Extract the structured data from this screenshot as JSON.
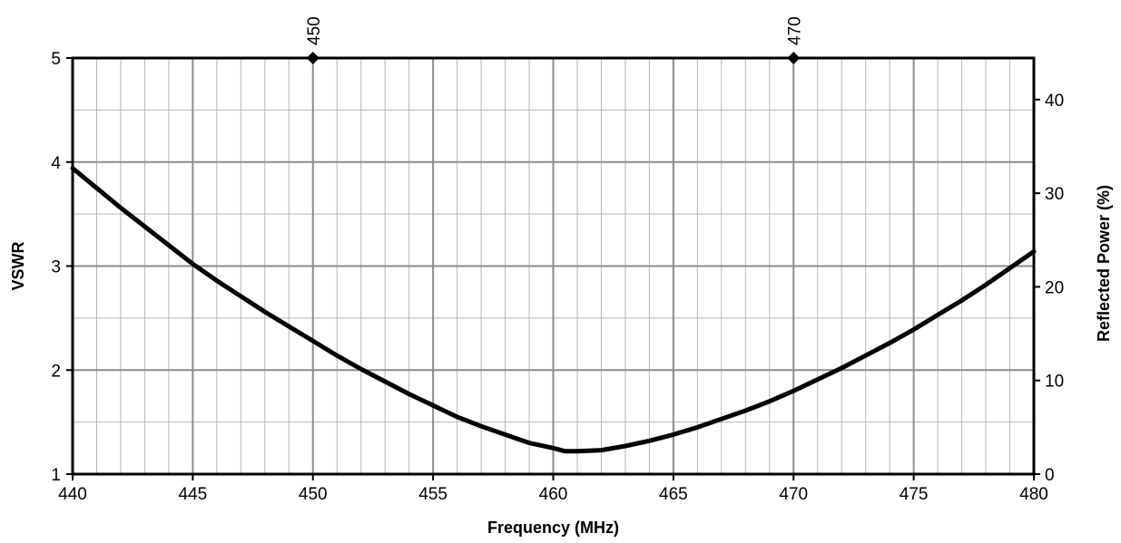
{
  "chart_data": {
    "type": "line",
    "xlabel": "Frequency (MHz)",
    "ylabel": "VSWR",
    "y2label": "Reflected Power (%)",
    "xlim": [
      440,
      480
    ],
    "ylim": [
      1,
      5
    ],
    "y2lim": [
      0,
      44.44
    ],
    "x_ticks": [
      "440",
      "445",
      "450",
      "455",
      "460",
      "465",
      "470",
      "475",
      "480"
    ],
    "y_ticks": [
      "1",
      "2",
      "3",
      "4",
      "5"
    ],
    "y2_ticks": [
      "0",
      "10",
      "20",
      "30",
      "40"
    ],
    "top_markers": [
      {
        "label": "450",
        "x": 450
      },
      {
        "label": "470",
        "x": 470
      }
    ],
    "grid": true,
    "series": [
      {
        "x": [
          440,
          441,
          442,
          443,
          444,
          445,
          446,
          447,
          448,
          449,
          450,
          451,
          452,
          453,
          454,
          455,
          456,
          457,
          458,
          459,
          460,
          460.5,
          461,
          462,
          463,
          464,
          465,
          466,
          467,
          468,
          469,
          470,
          471,
          472,
          473,
          474,
          475,
          476,
          477,
          478,
          479,
          480
        ],
        "values": [
          3.94,
          3.75,
          3.56,
          3.38,
          3.2,
          3.02,
          2.86,
          2.71,
          2.56,
          2.42,
          2.28,
          2.14,
          2.01,
          1.89,
          1.77,
          1.66,
          1.55,
          1.46,
          1.38,
          1.3,
          1.25,
          1.22,
          1.22,
          1.23,
          1.27,
          1.32,
          1.38,
          1.45,
          1.53,
          1.61,
          1.7,
          1.8,
          1.91,
          2.02,
          2.14,
          2.26,
          2.39,
          2.53,
          2.67,
          2.82,
          2.98,
          3.14
        ]
      }
    ]
  }
}
